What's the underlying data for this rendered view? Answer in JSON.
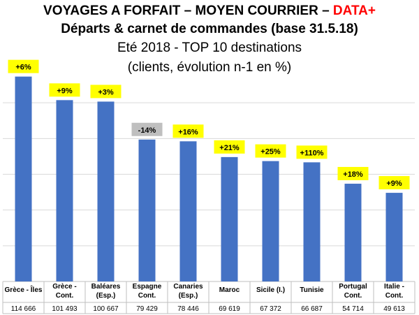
{
  "header": {
    "title_main": "VOYAGES A FORFAIT – MOYEN COURRIER – ",
    "title_accent": "DATA+",
    "subtitle": "Départs & carnet de commandes (base 31.5.18)",
    "line3": "Eté 2018 - TOP 10 destinations",
    "line4": "(clients, évolution n-1 en %)"
  },
  "colors": {
    "bar": "#4472c4",
    "badge_positive": "#ffff00",
    "badge_negative": "#bfbfbf",
    "accent": "#ff0000",
    "grid": "#d9d9d9"
  },
  "chart_data": {
    "type": "bar",
    "categories": [
      [
        "Grèce - Îles"
      ],
      [
        "Grèce -",
        "Cont."
      ],
      [
        "Baléares",
        "(Esp.)"
      ],
      [
        "Espagne",
        "Cont."
      ],
      [
        "Canaries",
        "(Esp.)"
      ],
      [
        "Maroc"
      ],
      [
        "Sicile (I.)"
      ],
      [
        "Tunisie"
      ],
      [
        "Portugal",
        "Cont."
      ],
      [
        "Italie -",
        "Cont."
      ]
    ],
    "values": [
      114666,
      101493,
      100667,
      79429,
      78446,
      69619,
      67372,
      66687,
      54714,
      49613
    ],
    "value_labels": [
      "114 666",
      "101 493",
      "100 667",
      "79 429",
      "78 446",
      "69 619",
      "67 372",
      "66 687",
      "54 714",
      "49 613"
    ],
    "change_labels": [
      "+6%",
      "+9%",
      "+3%",
      "-14%",
      "+16%",
      "+21%",
      "+25%",
      "+110%",
      "+18%",
      "+9%"
    ],
    "change_positive": [
      true,
      true,
      true,
      false,
      true,
      true,
      true,
      true,
      true,
      true
    ],
    "ylim": [
      0,
      120000
    ],
    "grid": true,
    "legend": "none"
  }
}
